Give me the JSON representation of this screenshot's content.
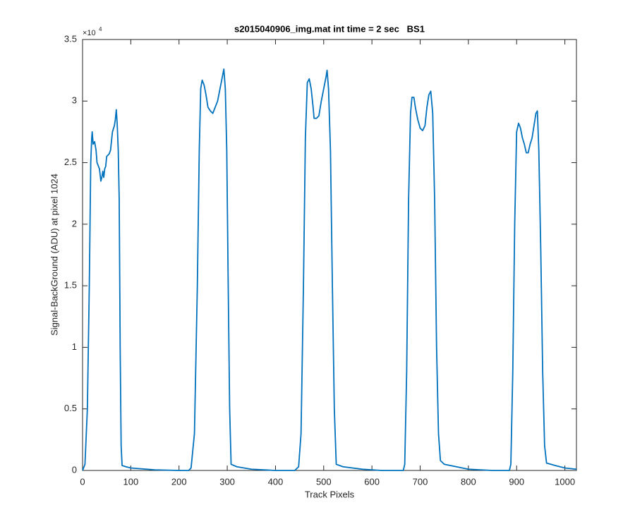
{
  "chart_data": {
    "type": "line",
    "title": "s2015040906_img.mat int time = 2 sec   BS1",
    "x_label": "Track Pixels",
    "y_label": "Signal-BackGround (ADU) at pixel 1024",
    "y_multiplier_base": "×10",
    "y_multiplier_exponent": "4",
    "xlim": [
      0,
      1024
    ],
    "ylim": [
      0,
      3.5
    ],
    "xticks": [
      0,
      100,
      200,
      300,
      400,
      500,
      600,
      700,
      800,
      900,
      1000
    ],
    "yticks": [
      0,
      0.5,
      1,
      1.5,
      2,
      2.5,
      3,
      3.5
    ],
    "grid": false,
    "series": [
      {
        "color": "#0072bd",
        "x": [
          0,
          5,
          10,
          14,
          17,
          19,
          20,
          22,
          25,
          28,
          30,
          35,
          38,
          40,
          42,
          44,
          46,
          48,
          50,
          55,
          58,
          62,
          66,
          68,
          70,
          72,
          74,
          76,
          78,
          80,
          82,
          90,
          100,
          150,
          200,
          220,
          225,
          232,
          238,
          242,
          245,
          248,
          252,
          256,
          260,
          265,
          270,
          275,
          280,
          285,
          290,
          293,
          296,
          299,
          302,
          305,
          308,
          320,
          350,
          400,
          440,
          448,
          453,
          458,
          462,
          466,
          470,
          474,
          478,
          480,
          485,
          490,
          495,
          500,
          505,
          507,
          510,
          514,
          518,
          522,
          526,
          540,
          580,
          620,
          665,
          668,
          672,
          676,
          680,
          683,
          687,
          690,
          695,
          700,
          705,
          710,
          714,
          718,
          722,
          726,
          730,
          734,
          738,
          742,
          750,
          800,
          850,
          885,
          888,
          892,
          896,
          900,
          904,
          908,
          912,
          916,
          920,
          924,
          928,
          932,
          936,
          940,
          943,
          946,
          950,
          954,
          958,
          962,
          980,
          1000,
          1024
        ],
        "values": [
          0,
          0.05,
          0.5,
          1.5,
          2.5,
          2.7,
          2.75,
          2.65,
          2.67,
          2.6,
          2.5,
          2.45,
          2.35,
          2.38,
          2.43,
          2.38,
          2.45,
          2.47,
          2.55,
          2.57,
          2.6,
          2.75,
          2.8,
          2.85,
          2.93,
          2.8,
          2.6,
          2.2,
          1.0,
          0.2,
          0.04,
          0.03,
          0.02,
          0.005,
          0,
          0,
          0.02,
          0.3,
          1.5,
          2.6,
          3.1,
          3.17,
          3.13,
          3.05,
          2.95,
          2.92,
          2.9,
          2.95,
          3.0,
          3.1,
          3.2,
          3.26,
          3.1,
          2.6,
          1.5,
          0.5,
          0.05,
          0.03,
          0.01,
          0,
          0,
          0.03,
          0.3,
          1.5,
          2.7,
          3.15,
          3.18,
          3.1,
          2.95,
          2.86,
          2.86,
          2.88,
          3.0,
          3.1,
          3.2,
          3.25,
          3.1,
          2.6,
          1.5,
          0.5,
          0.05,
          0.03,
          0.01,
          0,
          0,
          0.05,
          0.8,
          2.2,
          2.9,
          3.03,
          3.03,
          2.95,
          2.85,
          2.78,
          2.76,
          2.8,
          2.95,
          3.05,
          3.08,
          2.9,
          2.2,
          1.0,
          0.3,
          0.08,
          0.05,
          0.01,
          0,
          0,
          0.05,
          0.8,
          2.0,
          2.75,
          2.82,
          2.78,
          2.7,
          2.65,
          2.58,
          2.58,
          2.65,
          2.7,
          2.8,
          2.9,
          2.92,
          2.6,
          1.8,
          0.8,
          0.2,
          0.06,
          0.04,
          0.02,
          0.01
        ]
      }
    ]
  }
}
